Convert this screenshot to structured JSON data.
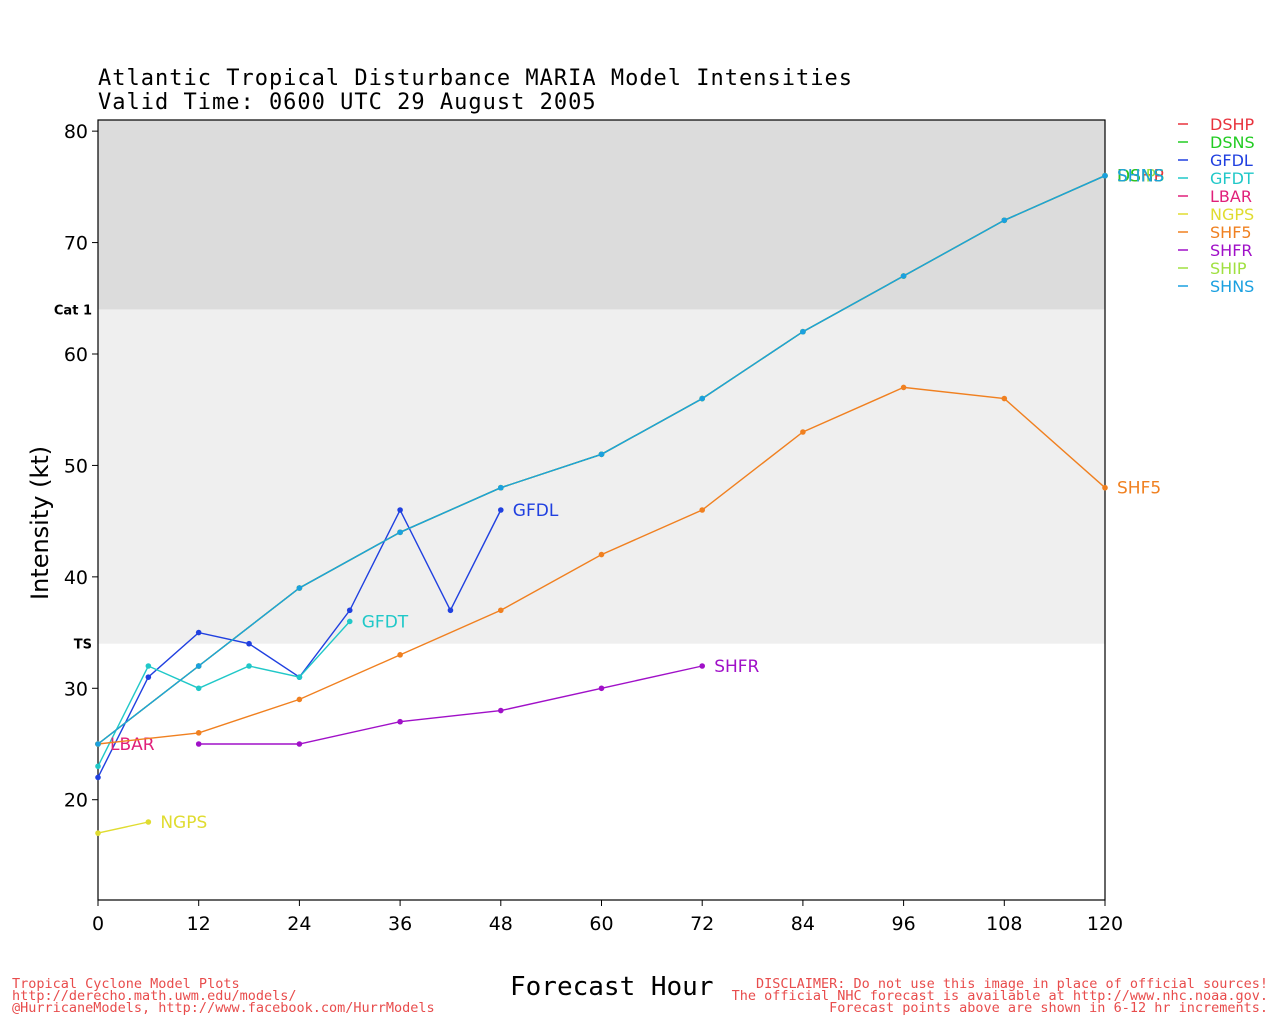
{
  "title": {
    "line1": "Atlantic Tropical Disturbance MARIA Model Intensities",
    "line2": "Valid Time: 0600 UTC 29 August 2005"
  },
  "footer": {
    "left": [
      "Tropical Cyclone Model Plots",
      "http://derecho.math.uwm.edu/models/",
      "@HurricaneModels, http://www.facebook.com/HurrModels"
    ],
    "right": [
      "DISCLAIMER: Do not use this image in place of official sources!",
      "The official NHC forecast is available at http://www.nhc.noaa.gov.",
      "Forecast points above are shown in 6-12 hr increments."
    ]
  },
  "chart_data": {
    "type": "line",
    "xlabel": "Forecast Hour",
    "ylabel": "Intensity (kt)",
    "xlim": [
      0,
      120
    ],
    "ylim": [
      11,
      81
    ],
    "xticks": [
      0,
      12,
      24,
      36,
      48,
      60,
      72,
      84,
      96,
      108,
      120
    ],
    "yticks": [
      20,
      30,
      40,
      50,
      60,
      70,
      80
    ],
    "bands": [
      {
        "label": "TS",
        "from": 34,
        "to": 64,
        "color": "#efefef"
      },
      {
        "label": "Cat 1",
        "from": 64,
        "to": 81,
        "color": "#dcdcdc"
      }
    ],
    "legend_position": "right",
    "series": [
      {
        "name": "DSHP",
        "color": "#e8323c",
        "x": [
          0,
          12,
          24,
          36,
          48,
          60,
          72,
          84,
          96,
          108,
          120
        ],
        "y": [
          25,
          32,
          39,
          44,
          48,
          51,
          56,
          62,
          67,
          72,
          76
        ]
      },
      {
        "name": "DSNS",
        "color": "#22cc22",
        "x": [
          0,
          12,
          24,
          36,
          48,
          60,
          72,
          84,
          96,
          108,
          120
        ],
        "y": [
          25,
          32,
          39,
          44,
          48,
          51,
          56,
          62,
          67,
          72,
          76
        ]
      },
      {
        "name": "GFDL",
        "color": "#2040e0",
        "x": [
          0,
          6,
          12,
          18,
          24,
          30,
          36,
          42,
          48
        ],
        "y": [
          22,
          31,
          35,
          34,
          31,
          37,
          46,
          37,
          46
        ]
      },
      {
        "name": "GFDT",
        "color": "#20c8c8",
        "x": [
          0,
          6,
          12,
          18,
          24,
          30
        ],
        "y": [
          23,
          32,
          30,
          32,
          31,
          36
        ]
      },
      {
        "name": "LBAR",
        "color": "#e0207a",
        "x": [
          0
        ],
        "y": [
          25
        ]
      },
      {
        "name": "NGPS",
        "color": "#e0dc30",
        "x": [
          0,
          6
        ],
        "y": [
          17,
          18
        ]
      },
      {
        "name": "SHF5",
        "color": "#f08020",
        "x": [
          0,
          12,
          24,
          36,
          48,
          60,
          72,
          84,
          96,
          108,
          120
        ],
        "y": [
          25,
          26,
          29,
          33,
          37,
          42,
          46,
          53,
          57,
          56,
          48
        ]
      },
      {
        "name": "SHFR",
        "color": "#a010c8",
        "x": [
          12,
          24,
          36,
          48,
          60,
          72
        ],
        "y": [
          25,
          25,
          27,
          28,
          30,
          32
        ]
      },
      {
        "name": "SHIP",
        "color": "#a0e040",
        "x": [
          0,
          12,
          24,
          36,
          48,
          60,
          72,
          84,
          96,
          108,
          120
        ],
        "y": [
          25,
          32,
          39,
          44,
          48,
          51,
          56,
          62,
          67,
          72,
          76
        ]
      },
      {
        "name": "SHNS",
        "color": "#1aa0e0",
        "x": [
          0,
          12,
          24,
          36,
          48,
          60,
          72,
          84,
          96,
          108,
          120
        ],
        "y": [
          25,
          32,
          39,
          44,
          48,
          51,
          56,
          62,
          67,
          72,
          76
        ]
      }
    ]
  }
}
